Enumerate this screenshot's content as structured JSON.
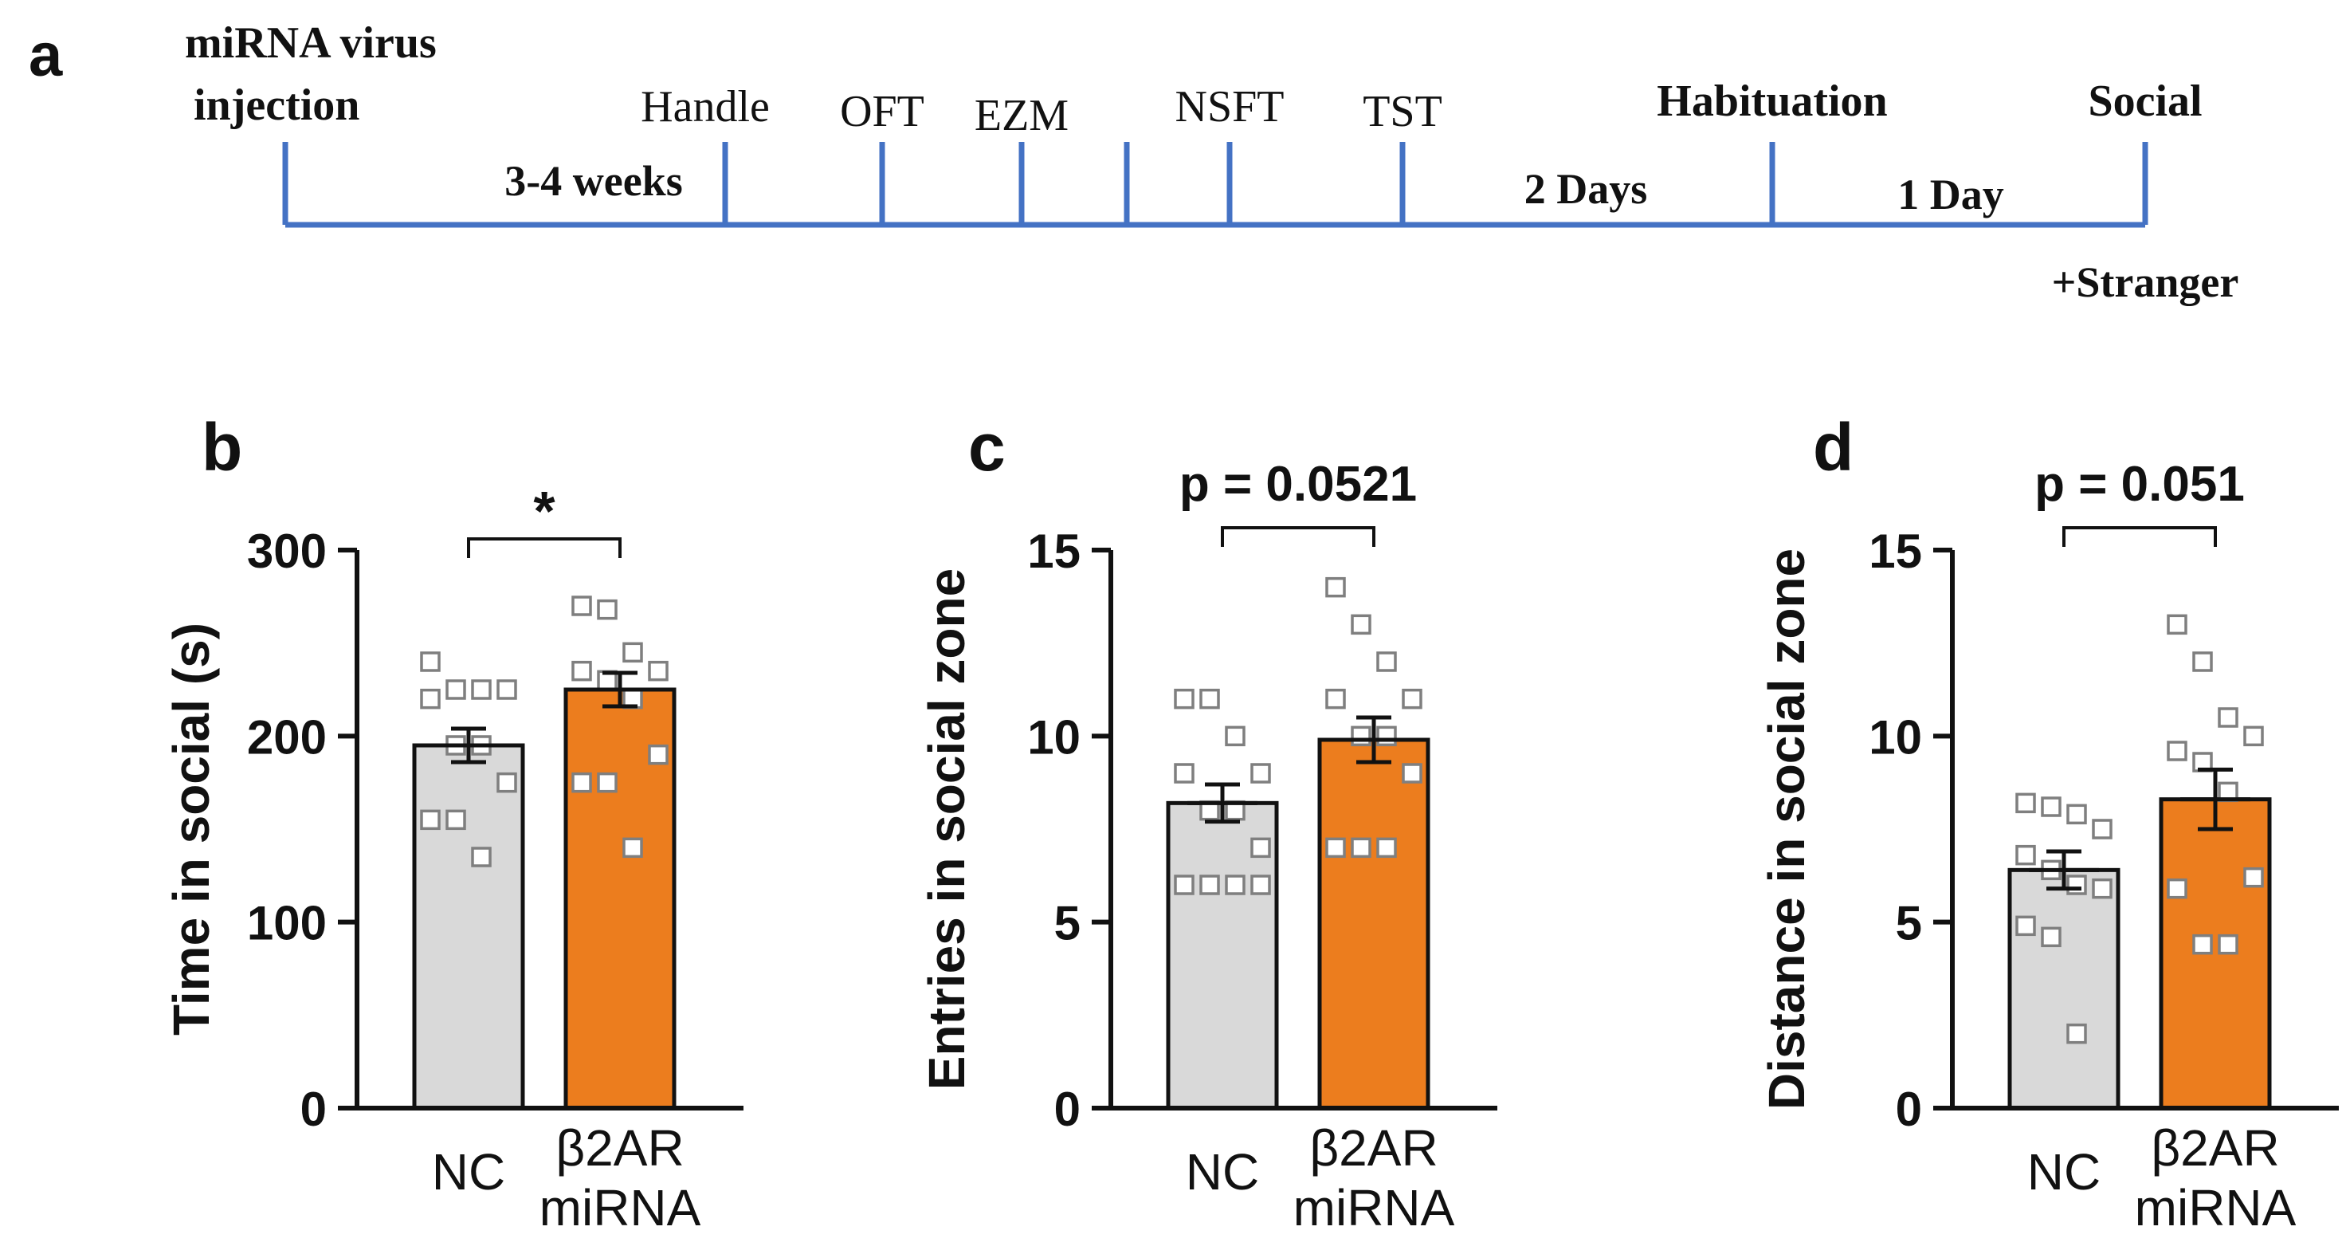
{
  "timeline": {
    "panel_label": "a",
    "color": "#4472c4",
    "events": [
      {
        "label_lines": [
          "miRNA virus",
          "injection"
        ],
        "bold": true
      },
      {
        "label_lines": [
          "Handle"
        ],
        "bold": false
      },
      {
        "label_lines": [
          "OFT"
        ],
        "bold": false
      },
      {
        "label_lines": [
          "EZM"
        ],
        "bold": false
      },
      {
        "label_lines": [
          ""
        ],
        "bold": false
      },
      {
        "label_lines": [
          "NSFT"
        ],
        "bold": false
      },
      {
        "label_lines": [
          "TST"
        ],
        "bold": false
      },
      {
        "label_lines": [
          "Habituation"
        ],
        "bold": true
      },
      {
        "label_lines": [
          "Social"
        ],
        "bold": true
      }
    ],
    "intervals": [
      {
        "label": "3-4 weeks"
      },
      {
        "label": "2 Days"
      },
      {
        "label": "1 Day"
      }
    ],
    "end_note": "+Stranger"
  },
  "colors": {
    "nc_bar": "#d9d9d9",
    "mirna_bar": "#ec7d1e",
    "axis": "#111111",
    "marker_edge": "#7f7f7f"
  },
  "chart_data": [
    {
      "panel_label": "b",
      "type": "bar",
      "categories": [
        [
          "NC"
        ],
        [
          "β2AR",
          "miRNA"
        ]
      ],
      "means": [
        195,
        225
      ],
      "sem": [
        9,
        9
      ],
      "points": [
        [
          240,
          225,
          225,
          225,
          220,
          195,
          195,
          175,
          155,
          155,
          135
        ],
        [
          270,
          268,
          245,
          235,
          235,
          230,
          220,
          190,
          175,
          175,
          140
        ]
      ],
      "ylabel": "Time in social (s)",
      "ylim": [
        0,
        300
      ],
      "yticks": [
        0,
        100,
        200,
        300
      ],
      "significance": "*"
    },
    {
      "panel_label": "c",
      "type": "bar",
      "categories": [
        [
          "NC"
        ],
        [
          "β2AR",
          "miRNA"
        ]
      ],
      "means": [
        8.2,
        9.9
      ],
      "sem": [
        0.5,
        0.6
      ],
      "points": [
        [
          11,
          11,
          10,
          9,
          9,
          8,
          8,
          7,
          6,
          6,
          6,
          6
        ],
        [
          14,
          13,
          12,
          11,
          11,
          10,
          10,
          9,
          7,
          7,
          7
        ]
      ],
      "ylabel": "Entries in social zone",
      "ylim": [
        0,
        15
      ],
      "yticks": [
        0,
        5,
        10,
        15
      ],
      "significance": "p = 0.0521"
    },
    {
      "panel_label": "d",
      "type": "bar",
      "categories": [
        [
          "NC"
        ],
        [
          "β2AR",
          "miRNA"
        ]
      ],
      "means": [
        6.4,
        8.3
      ],
      "sem": [
        0.5,
        0.8
      ],
      "points": [
        [
          8.2,
          8.1,
          7.9,
          7.5,
          6.8,
          6.4,
          6.0,
          5.9,
          4.9,
          4.6,
          2.0
        ],
        [
          13,
          12,
          10.5,
          10,
          9.6,
          9.3,
          8.5,
          6.2,
          5.9,
          4.4,
          4.4
        ]
      ],
      "ylabel": "Distance in social zone",
      "ylim": [
        0,
        15
      ],
      "yticks": [
        0,
        5,
        10,
        15
      ],
      "significance": "p = 0.051"
    }
  ]
}
